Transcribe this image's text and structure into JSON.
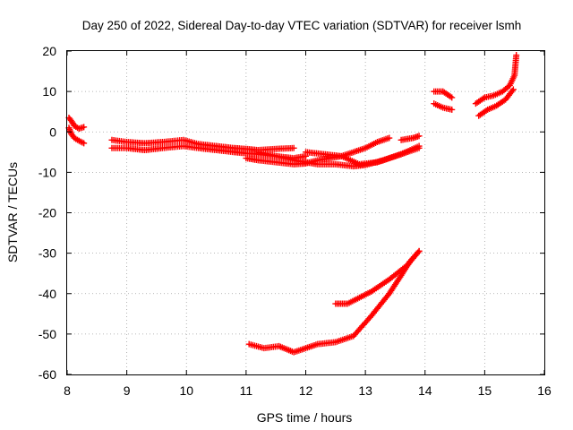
{
  "chart_data": {
    "type": "scatter",
    "title": "Day 250 of 2022, Sidereal Day-to-day VTEC variation (SDTVAR) for receiver lsmh",
    "xlabel": "GPS time / hours",
    "ylabel": "SDTVAR / TECUs",
    "xlim": [
      8,
      16
    ],
    "ylim": [
      -60,
      20
    ],
    "xticks": [
      8,
      9,
      10,
      11,
      12,
      13,
      14,
      15,
      16
    ],
    "yticks": [
      -60,
      -50,
      -40,
      -30,
      -20,
      -10,
      0,
      10,
      20
    ],
    "grid": true,
    "marker": "+",
    "color": "#ff0000",
    "series": [
      {
        "name": "s1",
        "points": [
          [
            8.03,
            3.5
          ],
          [
            8.08,
            2.5
          ],
          [
            8.12,
            1.5
          ],
          [
            8.2,
            0.8
          ],
          [
            8.28,
            1.2
          ]
        ]
      },
      {
        "name": "s2",
        "points": [
          [
            8.03,
            1.0
          ],
          [
            8.07,
            -0.5
          ],
          [
            8.12,
            -1.5
          ],
          [
            8.2,
            -2.2
          ],
          [
            8.28,
            -2.8
          ]
        ]
      },
      {
        "name": "s3",
        "points": [
          [
            8.75,
            -2.0
          ],
          [
            9.0,
            -2.5
          ],
          [
            9.3,
            -2.8
          ],
          [
            9.6,
            -2.5
          ],
          [
            9.95,
            -2.0
          ],
          [
            10.2,
            -3.0
          ],
          [
            10.5,
            -3.5
          ],
          [
            10.8,
            -4.0
          ],
          [
            11.0,
            -4.2
          ],
          [
            11.2,
            -4.5
          ],
          [
            11.5,
            -4.2
          ],
          [
            11.8,
            -4.0
          ]
        ]
      },
      {
        "name": "s4",
        "points": [
          [
            8.75,
            -4.0
          ],
          [
            9.0,
            -4.0
          ],
          [
            9.3,
            -4.5
          ],
          [
            9.6,
            -4.0
          ],
          [
            9.95,
            -3.5
          ],
          [
            10.2,
            -4.0
          ],
          [
            10.5,
            -4.5
          ],
          [
            10.8,
            -5.0
          ],
          [
            11.0,
            -5.3
          ],
          [
            11.2,
            -5.5
          ],
          [
            11.5,
            -6.0
          ],
          [
            11.8,
            -6.5
          ],
          [
            12.0,
            -6.0
          ]
        ]
      },
      {
        "name": "s5",
        "points": [
          [
            11.0,
            -6.5
          ],
          [
            11.2,
            -7.0
          ],
          [
            11.5,
            -7.5
          ],
          [
            11.8,
            -8.0
          ],
          [
            12.0,
            -7.8
          ],
          [
            12.2,
            -7.0
          ],
          [
            12.4,
            -6.5
          ],
          [
            12.6,
            -6.0
          ],
          [
            12.8,
            -5.0
          ],
          [
            13.0,
            -4.0
          ],
          [
            13.2,
            -2.5
          ],
          [
            13.4,
            -1.5
          ]
        ]
      },
      {
        "name": "s6",
        "points": [
          [
            11.2,
            -5.0
          ],
          [
            11.5,
            -6.0
          ],
          [
            11.8,
            -7.0
          ],
          [
            12.0,
            -7.5
          ],
          [
            12.2,
            -8.0
          ],
          [
            12.5,
            -8.0
          ],
          [
            12.8,
            -8.5
          ],
          [
            13.0,
            -8.2
          ],
          [
            13.3,
            -7.0
          ],
          [
            13.6,
            -5.5
          ],
          [
            13.9,
            -3.5
          ]
        ]
      },
      {
        "name": "s7",
        "points": [
          [
            12.0,
            -5.0
          ],
          [
            12.3,
            -5.5
          ],
          [
            12.6,
            -6.0
          ],
          [
            12.9,
            -8.0
          ],
          [
            13.2,
            -7.5
          ],
          [
            13.5,
            -6.0
          ],
          [
            13.9,
            -4.0
          ]
        ]
      },
      {
        "name": "s8",
        "points": [
          [
            13.6,
            -2.0
          ],
          [
            13.8,
            -1.5
          ],
          [
            13.9,
            -1.0
          ]
        ]
      },
      {
        "name": "s9",
        "points": [
          [
            14.15,
            10.0
          ],
          [
            14.3,
            10.0
          ],
          [
            14.45,
            8.5
          ]
        ]
      },
      {
        "name": "s10",
        "points": [
          [
            14.15,
            7.0
          ],
          [
            14.3,
            6.0
          ],
          [
            14.45,
            5.5
          ]
        ]
      },
      {
        "name": "s11",
        "points": [
          [
            14.85,
            7.0
          ],
          [
            15.0,
            8.5
          ],
          [
            15.15,
            9.0
          ],
          [
            15.3,
            10.0
          ],
          [
            15.42,
            11.5
          ],
          [
            15.5,
            14.0
          ],
          [
            15.53,
            19.0
          ]
        ]
      },
      {
        "name": "s12",
        "points": [
          [
            14.9,
            4.0
          ],
          [
            15.05,
            5.5
          ],
          [
            15.2,
            6.5
          ],
          [
            15.35,
            8.0
          ],
          [
            15.48,
            10.5
          ]
        ]
      },
      {
        "name": "s13",
        "points": [
          [
            11.05,
            -52.5
          ],
          [
            11.3,
            -53.5
          ],
          [
            11.55,
            -53.0
          ],
          [
            11.8,
            -54.5
          ],
          [
            12.0,
            -53.5
          ],
          [
            12.2,
            -52.5
          ],
          [
            12.5,
            -52.0
          ],
          [
            12.8,
            -50.5
          ],
          [
            13.1,
            -45.5
          ],
          [
            13.4,
            -40.0
          ],
          [
            13.6,
            -35.5
          ],
          [
            13.75,
            -32.0
          ],
          [
            13.9,
            -29.5
          ]
        ]
      },
      {
        "name": "s14",
        "points": [
          [
            12.5,
            -42.5
          ],
          [
            12.7,
            -42.5
          ],
          [
            12.9,
            -41.0
          ],
          [
            13.1,
            -39.5
          ],
          [
            13.4,
            -36.5
          ],
          [
            13.7,
            -33.0
          ],
          [
            13.9,
            -29.5
          ]
        ]
      }
    ]
  }
}
